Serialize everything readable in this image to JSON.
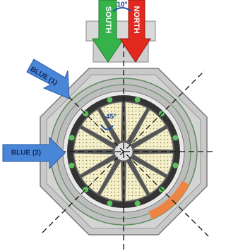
{
  "labels": {
    "rotation_top": "10°",
    "south": "SOUTH",
    "north": "NORTH",
    "blue_1": "BLUE (1)",
    "blue_2": "BLUE (2)",
    "rotation_inner": "45°"
  }
}
